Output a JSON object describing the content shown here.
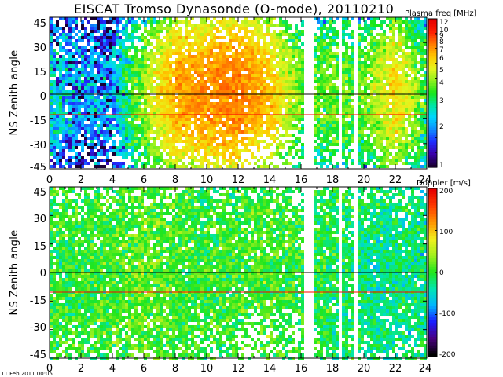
{
  "figure": {
    "title": "EISCAT Tromso Dynasonde (O-mode),  20110210",
    "timestamp": "11 Feb 2011 00:05"
  },
  "colors": {
    "palette": [
      "#1a0033",
      "#3a00aa",
      "#1e2cff",
      "#0f8cff",
      "#00d6ff",
      "#00e6a0",
      "#19e619",
      "#8cf01e",
      "#e6f51e",
      "#ffc800",
      "#ff7a00",
      "#ff1e00",
      "#e60000"
    ],
    "doppler_palette": [
      "#000000",
      "#4a0080",
      "#1a1aff",
      "#00b4ff",
      "#00e6b4",
      "#1ee61e",
      "#a0f01e",
      "#f0f01e",
      "#ff9600",
      "#ff3c00",
      "#e60000"
    ]
  },
  "chart_data": [
    {
      "type": "heatmap",
      "title": "EISCAT Tromso Dynasonde (O-mode),  20110210",
      "ylabel": "NS Zenith angle",
      "xlabel": "",
      "xlim": [
        0,
        24
      ],
      "ylim": [
        -47,
        47
      ],
      "x_ticks": [
        0,
        2,
        4,
        6,
        8,
        10,
        12,
        14,
        16,
        18,
        20,
        22,
        24
      ],
      "x_tick_labels": [
        "0",
        "2",
        "4",
        "6",
        "8",
        "10",
        "12",
        "14",
        "16",
        "18",
        "20",
        "22",
        "24"
      ],
      "y_ticks": [
        -45,
        -30,
        -15,
        0,
        15,
        30,
        45
      ],
      "y_tick_labels": [
        "-45",
        "-30",
        "-15",
        "0",
        "15",
        "30",
        "45"
      ],
      "reference_lines": [
        {
          "y": 0,
          "color": "#000000"
        },
        {
          "y": -12,
          "color": "#ff0000"
        }
      ],
      "data_gaps_hours": [
        [
          16.2,
          16.7
        ],
        [
          18.3,
          18.5
        ],
        [
          19.4,
          19.5
        ]
      ],
      "colorbar": {
        "title": "Plasma freq [MHz]",
        "scale": "log",
        "range": [
          1,
          12
        ],
        "ticks": [
          1,
          2,
          3,
          4,
          5,
          6,
          7,
          8,
          9,
          10,
          12
        ],
        "tick_labels": [
          "1",
          "2",
          "3",
          "4",
          "5",
          "6",
          "7",
          "8",
          "9",
          "10",
          "12"
        ]
      },
      "dominant_values_by_hour": [
        {
          "hour": 0,
          "plasma_freq_mhz": 2.5
        },
        {
          "hour": 2,
          "plasma_freq_mhz": 2.0
        },
        {
          "hour": 4,
          "plasma_freq_mhz": 2.0
        },
        {
          "hour": 6,
          "plasma_freq_mhz": 4.5
        },
        {
          "hour": 8,
          "plasma_freq_mhz": 7.0
        },
        {
          "hour": 10,
          "plasma_freq_mhz": 7.5
        },
        {
          "hour": 12,
          "plasma_freq_mhz": 8.0
        },
        {
          "hour": 14,
          "plasma_freq_mhz": 6.5
        },
        {
          "hour": 16,
          "plasma_freq_mhz": 4.0
        },
        {
          "hour": 20,
          "plasma_freq_mhz": 4.0
        },
        {
          "hour": 22,
          "plasma_freq_mhz": 6.0
        },
        {
          "hour": 24,
          "plasma_freq_mhz": 3.5
        }
      ]
    },
    {
      "type": "heatmap",
      "ylabel": "NS Zenith angle",
      "xlabel": "",
      "xlim": [
        0,
        24
      ],
      "ylim": [
        -47,
        47
      ],
      "x_ticks": [
        0,
        2,
        4,
        6,
        8,
        10,
        12,
        14,
        16,
        18,
        20,
        22,
        24
      ],
      "x_tick_labels": [
        "0",
        "2",
        "4",
        "6",
        "8",
        "10",
        "12",
        "14",
        "16",
        "18",
        "20",
        "22",
        "24"
      ],
      "y_ticks": [
        -45,
        -30,
        -15,
        0,
        15,
        30,
        45
      ],
      "y_tick_labels": [
        "-45",
        "-30",
        "-15",
        "0",
        "15",
        "30",
        "45"
      ],
      "reference_lines": [
        {
          "y": 0,
          "color": "#000000"
        },
        {
          "y": -12,
          "color": "#ff0000"
        }
      ],
      "data_gaps_hours": [
        [
          16.2,
          16.7
        ],
        [
          18.3,
          18.5
        ],
        [
          19.4,
          19.5
        ]
      ],
      "colorbar": {
        "title": "Doppler [m/s]",
        "scale": "linear",
        "range": [
          -200,
          200
        ],
        "ticks": [
          -200,
          -100,
          0,
          100,
          200
        ],
        "tick_labels": [
          "-200",
          "-100",
          "0",
          "100",
          "200"
        ]
      },
      "dominant_values_by_hour": [
        {
          "hour": 2,
          "doppler_ms": 0
        },
        {
          "hour": 6,
          "doppler_ms": 20
        },
        {
          "hour": 10,
          "doppler_ms": 0
        },
        {
          "hour": 14,
          "doppler_ms": 10
        },
        {
          "hour": 21,
          "doppler_ms": -30
        }
      ]
    }
  ]
}
